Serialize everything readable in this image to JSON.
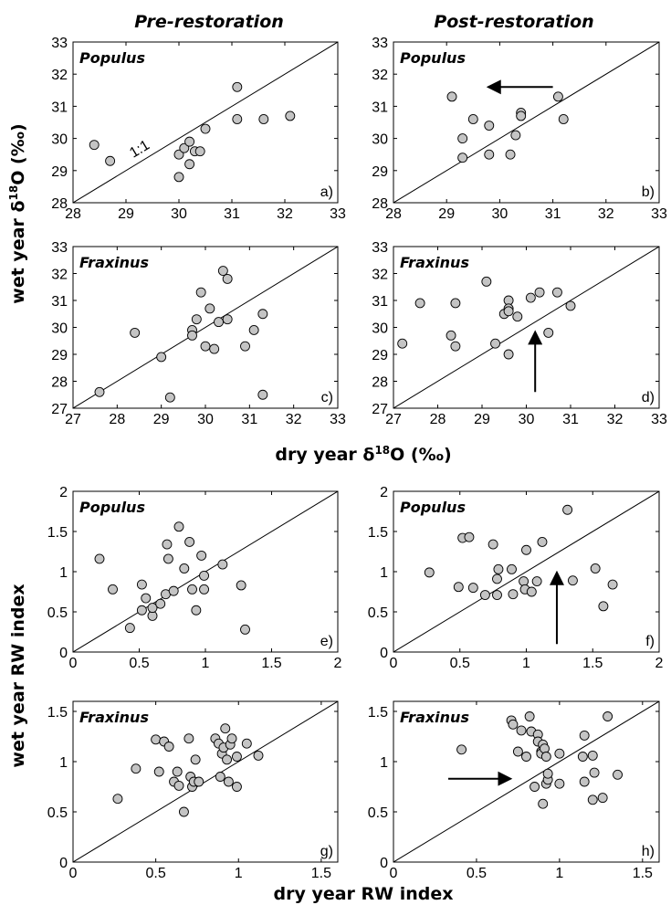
{
  "headers": {
    "left": "Pre-restoration",
    "right": "Post-restoration"
  },
  "labels": {
    "y_top": "wet year δ18O (‰)",
    "x_top": "dry year δ18O (‰)",
    "y_bottom": "wet year RW index",
    "x_bottom": "dry year RW index",
    "one_to_one": "1:1"
  },
  "chart_data": [
    {
      "panel": "a)",
      "genus": "Populus",
      "type": "scatter",
      "xlim": [
        28,
        33
      ],
      "ylim": [
        28,
        33
      ],
      "xticks": [
        28,
        29,
        30,
        31,
        32,
        33
      ],
      "yticks": [
        28,
        29,
        30,
        31,
        32,
        33
      ],
      "points": [
        [
          28.4,
          29.8
        ],
        [
          28.7,
          29.3
        ],
        [
          30.0,
          29.5
        ],
        [
          30.0,
          28.8
        ],
        [
          30.1,
          29.7
        ],
        [
          30.2,
          29.9
        ],
        [
          30.2,
          29.2
        ],
        [
          30.3,
          29.6
        ],
        [
          30.4,
          29.6
        ],
        [
          30.5,
          30.3
        ],
        [
          31.1,
          31.6
        ],
        [
          31.1,
          30.6
        ],
        [
          31.6,
          30.6
        ],
        [
          32.1,
          30.7
        ]
      ],
      "one_to_one_label": true
    },
    {
      "panel": "b)",
      "genus": "Populus",
      "type": "scatter",
      "xlim": [
        28,
        33
      ],
      "ylim": [
        28,
        33
      ],
      "xticks": [
        28,
        29,
        30,
        31,
        32,
        33
      ],
      "yticks": [
        28,
        29,
        30,
        31,
        32,
        33
      ],
      "points": [
        [
          29.1,
          31.3
        ],
        [
          29.3,
          30.0
        ],
        [
          29.3,
          29.4
        ],
        [
          29.5,
          30.6
        ],
        [
          29.8,
          30.4
        ],
        [
          29.8,
          29.5
        ],
        [
          30.2,
          29.5
        ],
        [
          30.3,
          30.1
        ],
        [
          30.4,
          30.8
        ],
        [
          30.4,
          30.7
        ],
        [
          31.1,
          31.3
        ],
        [
          31.2,
          30.6
        ]
      ],
      "arrow": {
        "from": [
          31.0,
          31.6
        ],
        "to": [
          29.8,
          31.6
        ]
      }
    },
    {
      "panel": "c)",
      "genus": "Fraxinus",
      "type": "scatter",
      "xlim": [
        27,
        33
      ],
      "ylim": [
        27,
        33
      ],
      "xticks": [
        27,
        28,
        29,
        30,
        31,
        32,
        33
      ],
      "yticks": [
        27,
        28,
        29,
        30,
        31,
        32,
        33
      ],
      "points": [
        [
          27.6,
          27.6
        ],
        [
          28.4,
          29.8
        ],
        [
          29.0,
          28.9
        ],
        [
          29.2,
          27.4
        ],
        [
          29.7,
          29.9
        ],
        [
          29.7,
          29.7
        ],
        [
          29.8,
          30.3
        ],
        [
          29.9,
          31.3
        ],
        [
          30.0,
          29.3
        ],
        [
          30.1,
          30.7
        ],
        [
          30.2,
          29.2
        ],
        [
          30.3,
          30.2
        ],
        [
          30.4,
          32.1
        ],
        [
          30.5,
          31.8
        ],
        [
          30.5,
          30.3
        ],
        [
          30.9,
          29.3
        ],
        [
          31.1,
          29.9
        ],
        [
          31.3,
          30.5
        ],
        [
          31.3,
          27.5
        ]
      ]
    },
    {
      "panel": "d)",
      "genus": "Fraxinus",
      "type": "scatter",
      "xlim": [
        27,
        33
      ],
      "ylim": [
        27,
        33
      ],
      "xticks": [
        27,
        28,
        29,
        30,
        31,
        32,
        33
      ],
      "yticks": [
        27,
        28,
        29,
        30,
        31,
        32,
        33
      ],
      "points": [
        [
          27.2,
          29.4
        ],
        [
          27.6,
          30.9
        ],
        [
          28.3,
          29.7
        ],
        [
          28.4,
          30.9
        ],
        [
          28.4,
          29.3
        ],
        [
          29.1,
          31.7
        ],
        [
          29.3,
          29.4
        ],
        [
          29.5,
          30.5
        ],
        [
          29.6,
          31.0
        ],
        [
          29.6,
          30.7
        ],
        [
          29.6,
          30.6
        ],
        [
          29.6,
          29.0
        ],
        [
          29.8,
          30.4
        ],
        [
          30.1,
          31.1
        ],
        [
          30.3,
          31.3
        ],
        [
          30.5,
          29.8
        ],
        [
          30.7,
          31.3
        ],
        [
          31.0,
          30.8
        ]
      ],
      "arrow": {
        "from": [
          30.2,
          27.6
        ],
        "to": [
          30.2,
          29.8
        ]
      }
    },
    {
      "panel": "e)",
      "genus": "Populus",
      "type": "scatter",
      "xlim": [
        0,
        2
      ],
      "ylim": [
        0,
        2
      ],
      "xticks": [
        0,
        0.5,
        1,
        1.5,
        2
      ],
      "yticks": [
        0,
        0.5,
        1,
        1.5,
        2
      ],
      "points": [
        [
          0.2,
          1.16
        ],
        [
          0.3,
          0.78
        ],
        [
          0.43,
          0.3
        ],
        [
          0.52,
          0.84
        ],
        [
          0.52,
          0.52
        ],
        [
          0.55,
          0.67
        ],
        [
          0.6,
          0.45
        ],
        [
          0.6,
          0.55
        ],
        [
          0.66,
          0.6
        ],
        [
          0.7,
          0.72
        ],
        [
          0.71,
          1.34
        ],
        [
          0.72,
          1.16
        ],
        [
          0.76,
          0.76
        ],
        [
          0.8,
          1.56
        ],
        [
          0.84,
          1.04
        ],
        [
          0.88,
          1.37
        ],
        [
          0.9,
          0.78
        ],
        [
          0.93,
          0.52
        ],
        [
          0.97,
          1.2
        ],
        [
          0.99,
          0.95
        ],
        [
          0.99,
          0.78
        ],
        [
          1.13,
          1.09
        ],
        [
          1.27,
          0.83
        ],
        [
          1.3,
          0.28
        ]
      ]
    },
    {
      "panel": "f)",
      "genus": "Populus",
      "type": "scatter",
      "xlim": [
        0,
        2
      ],
      "ylim": [
        0,
        2
      ],
      "xticks": [
        0,
        0.5,
        1,
        1.5,
        2
      ],
      "yticks": [
        0,
        0.5,
        1,
        1.5,
        2
      ],
      "points": [
        [
          0.27,
          0.99
        ],
        [
          0.49,
          0.81
        ],
        [
          0.52,
          1.42
        ],
        [
          0.57,
          1.43
        ],
        [
          0.6,
          0.8
        ],
        [
          0.69,
          0.71
        ],
        [
          0.75,
          1.34
        ],
        [
          0.78,
          0.71
        ],
        [
          0.78,
          0.91
        ],
        [
          0.79,
          1.03
        ],
        [
          0.89,
          1.03
        ],
        [
          0.9,
          0.72
        ],
        [
          0.98,
          0.88
        ],
        [
          0.99,
          0.78
        ],
        [
          1.0,
          1.27
        ],
        [
          1.04,
          0.75
        ],
        [
          1.08,
          0.88
        ],
        [
          1.12,
          1.37
        ],
        [
          1.31,
          1.77
        ],
        [
          1.35,
          0.89
        ],
        [
          1.52,
          1.04
        ],
        [
          1.58,
          0.57
        ],
        [
          1.65,
          0.84
        ]
      ],
      "arrow": {
        "from": [
          1.23,
          0.1
        ],
        "to": [
          1.23,
          0.98
        ]
      }
    },
    {
      "panel": "g)",
      "genus": "Fraxinus",
      "type": "scatter",
      "xlim": [
        0,
        1.6
      ],
      "ylim": [
        0,
        1.6
      ],
      "xticks": [
        0,
        0.5,
        1,
        1.5
      ],
      "yticks": [
        0,
        0.5,
        1,
        1.5
      ],
      "points": [
        [
          0.27,
          0.63
        ],
        [
          0.38,
          0.93
        ],
        [
          0.5,
          1.22
        ],
        [
          0.52,
          0.9
        ],
        [
          0.55,
          1.2
        ],
        [
          0.58,
          1.15
        ],
        [
          0.61,
          0.8
        ],
        [
          0.63,
          0.9
        ],
        [
          0.64,
          0.76
        ],
        [
          0.67,
          0.5
        ],
        [
          0.7,
          1.23
        ],
        [
          0.71,
          0.85
        ],
        [
          0.72,
          0.75
        ],
        [
          0.73,
          0.8
        ],
        [
          0.74,
          1.02
        ],
        [
          0.76,
          0.8
        ],
        [
          0.86,
          1.23
        ],
        [
          0.88,
          1.18
        ],
        [
          0.89,
          0.85
        ],
        [
          0.9,
          1.08
        ],
        [
          0.91,
          1.14
        ],
        [
          0.92,
          1.33
        ],
        [
          0.93,
          1.02
        ],
        [
          0.94,
          0.8
        ],
        [
          0.95,
          1.17
        ],
        [
          0.96,
          1.23
        ],
        [
          0.99,
          1.05
        ],
        [
          0.99,
          0.75
        ],
        [
          1.05,
          1.18
        ],
        [
          1.12,
          1.06
        ]
      ]
    },
    {
      "panel": "h)",
      "genus": "Fraxinus",
      "type": "scatter",
      "xlim": [
        0,
        1.6
      ],
      "ylim": [
        0,
        1.6
      ],
      "xticks": [
        0,
        0.5,
        1,
        1.5
      ],
      "yticks": [
        0,
        0.5,
        1,
        1.5
      ],
      "points": [
        [
          0.41,
          1.12
        ],
        [
          0.71,
          1.41
        ],
        [
          0.72,
          1.37
        ],
        [
          0.75,
          1.1
        ],
        [
          0.77,
          1.31
        ],
        [
          0.8,
          1.05
        ],
        [
          0.82,
          1.45
        ],
        [
          0.83,
          1.3
        ],
        [
          0.85,
          0.75
        ],
        [
          0.87,
          1.27
        ],
        [
          0.87,
          1.2
        ],
        [
          0.89,
          1.1
        ],
        [
          0.89,
          1.08
        ],
        [
          0.9,
          1.17
        ],
        [
          0.9,
          0.58
        ],
        [
          0.91,
          1.13
        ],
        [
          0.92,
          0.78
        ],
        [
          0.92,
          1.05
        ],
        [
          0.93,
          0.82
        ],
        [
          0.93,
          0.88
        ],
        [
          1.0,
          1.08
        ],
        [
          1.0,
          0.78
        ],
        [
          1.14,
          1.05
        ],
        [
          1.15,
          0.8
        ],
        [
          1.15,
          1.26
        ],
        [
          1.2,
          1.06
        ],
        [
          1.2,
          0.62
        ],
        [
          1.21,
          0.89
        ],
        [
          1.26,
          0.64
        ],
        [
          1.29,
          1.45
        ],
        [
          1.35,
          0.87
        ]
      ],
      "arrow": {
        "from": [
          0.33,
          0.83
        ],
        "to": [
          0.7,
          0.83
        ]
      }
    }
  ]
}
